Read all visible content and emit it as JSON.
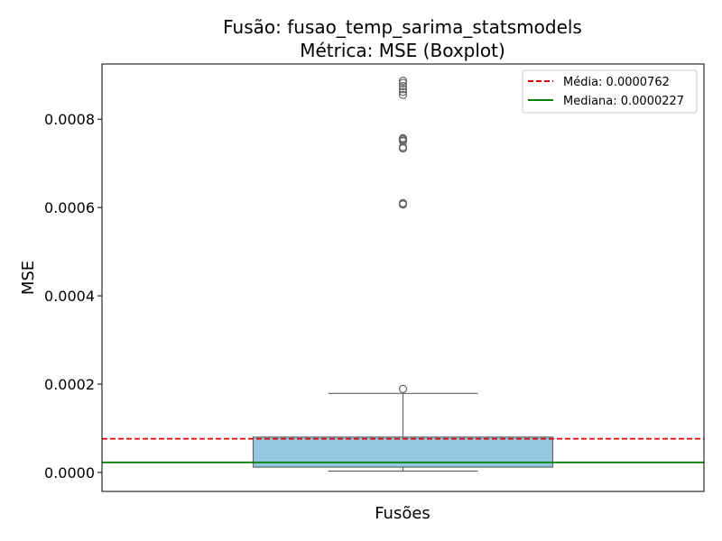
{
  "chart_data": {
    "type": "box",
    "title": "Fusão: fusao_temp_sarima_statsmodels",
    "subtitle": "Métrica: MSE (Boxplot)",
    "xlabel": "Fusões",
    "ylabel": "MSE",
    "ylim": [
      -4.3e-05,
      0.000925
    ],
    "yticks": [
      0.0,
      0.0002,
      0.0004,
      0.0006,
      0.0008
    ],
    "ytick_labels": [
      "0.0000",
      "0.0002",
      "0.0004",
      "0.0006",
      "0.0008"
    ],
    "box": {
      "whisker_low": 3e-06,
      "q1": 1.2e-05,
      "median": 2.27e-05,
      "q3": 8e-05,
      "whisker_high": 0.000179,
      "color": "#93c8e0"
    },
    "outliers": [
      0.000189,
      0.000607,
      0.000608,
      0.00061,
      0.000734,
      0.000737,
      0.00075,
      0.000752,
      0.000755,
      0.000757,
      0.000855,
      0.000862,
      0.000868,
      0.000875,
      0.000882,
      0.000887
    ],
    "mean_line": {
      "label": "Média: 0.0000762",
      "value": 7.62e-05,
      "color": "#e00000",
      "style": "dashed"
    },
    "median_line": {
      "label": "Mediana: 0.0000227",
      "value": 2.27e-05,
      "color": "#008000",
      "style": "solid"
    },
    "legend_position": "top-right",
    "grid": false
  }
}
